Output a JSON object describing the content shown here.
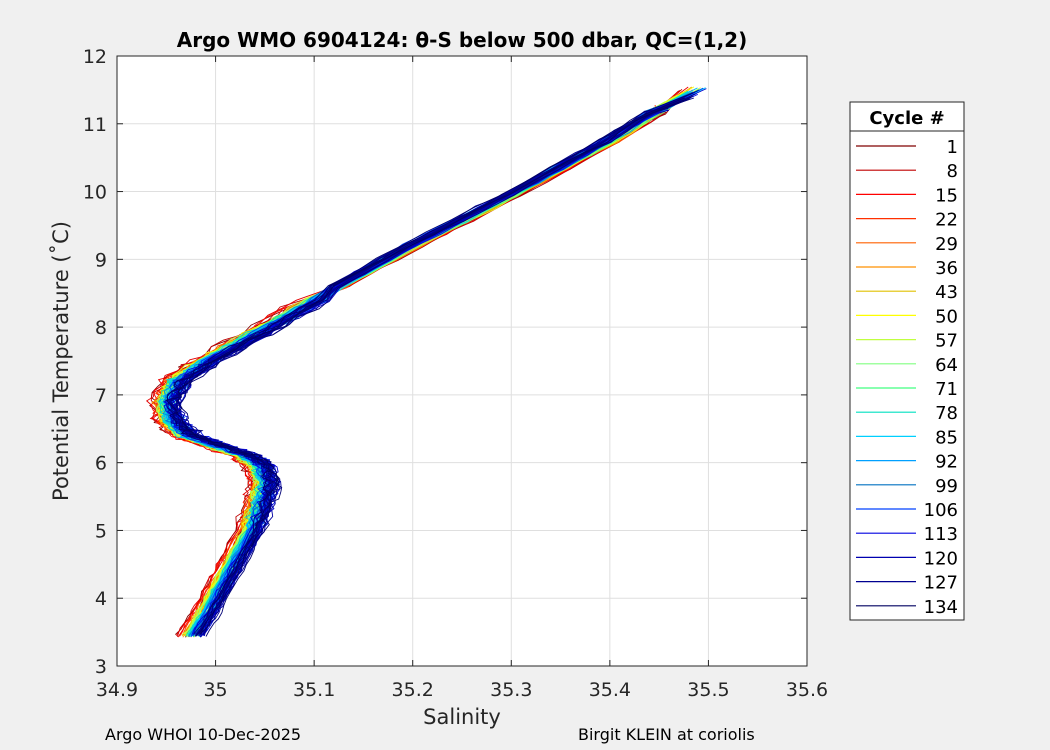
{
  "chart_data": {
    "type": "line",
    "title": "Argo WMO 6904124: θ-S below 500 dbar,  QC=(1,2)",
    "xlabel": "Salinity",
    "ylabel": "Potential Temperature (˚C)",
    "xlim": [
      34.9,
      35.6
    ],
    "ylim": [
      3,
      12
    ],
    "xticks": [
      34.9,
      35.0,
      35.1,
      35.2,
      35.3,
      35.4,
      35.5,
      35.6
    ],
    "xtick_labels": [
      "34.9",
      "35",
      "35.1",
      "35.2",
      "35.3",
      "35.4",
      "35.5",
      "35.6"
    ],
    "yticks": [
      3,
      4,
      5,
      6,
      7,
      8,
      9,
      10,
      11,
      12
    ],
    "ytick_labels": [
      "3",
      "4",
      "5",
      "6",
      "7",
      "8",
      "9",
      "10",
      "11",
      "12"
    ],
    "grid": true,
    "legend_title": "Cycle #",
    "legend_position": "right-outside",
    "legend": [
      {
        "name": "1",
        "color": "#800000"
      },
      {
        "name": "8",
        "color": "#c00000"
      },
      {
        "name": "15",
        "color": "#ff0000"
      },
      {
        "name": "22",
        "color": "#ff3000"
      },
      {
        "name": "29",
        "color": "#ff6000"
      },
      {
        "name": "36",
        "color": "#ff9000"
      },
      {
        "name": "43",
        "color": "#e0c000"
      },
      {
        "name": "50",
        "color": "#ffff00"
      },
      {
        "name": "57",
        "color": "#c0ff40"
      },
      {
        "name": "64",
        "color": "#80ff80"
      },
      {
        "name": "71",
        "color": "#40ff80"
      },
      {
        "name": "78",
        "color": "#00e0c0"
      },
      {
        "name": "85",
        "color": "#00d0ff"
      },
      {
        "name": "92",
        "color": "#00a0ff"
      },
      {
        "name": "99",
        "color": "#0070c0"
      },
      {
        "name": "106",
        "color": "#0040ff"
      },
      {
        "name": "113",
        "color": "#0000e0"
      },
      {
        "name": "120",
        "color": "#0000b0"
      },
      {
        "name": "127",
        "color": "#000090"
      },
      {
        "name": "134",
        "color": "#000060"
      }
    ],
    "base_profile": {
      "salinity": [
        34.975,
        34.99,
        35.005,
        35.02,
        35.035,
        35.045,
        35.05,
        35.045,
        35.03,
        35.0,
        34.97,
        34.955,
        34.95,
        34.96,
        34.99,
        35.04,
        35.1,
        35.2,
        35.3,
        35.4,
        35.46
      ],
      "temperature": [
        3.45,
        3.8,
        4.2,
        4.6,
        5.0,
        5.4,
        5.7,
        5.95,
        6.1,
        6.25,
        6.4,
        6.6,
        6.9,
        7.2,
        7.5,
        7.9,
        8.4,
        9.2,
        9.95,
        10.75,
        11.3
      ]
    }
  },
  "footer": {
    "left": "Argo WHOI 10-Dec-2025",
    "right": "Birgit KLEIN at coriolis"
  }
}
